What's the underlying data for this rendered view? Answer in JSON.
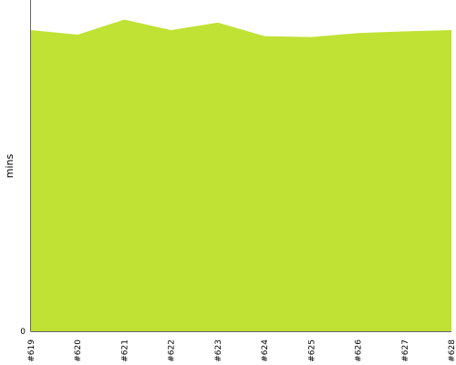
{
  "chart_data": {
    "type": "area",
    "categories": [
      "#619",
      "#620",
      "#621",
      "#622",
      "#623",
      "#624",
      "#625",
      "#626",
      "#627",
      "#628"
    ],
    "values": [
      1.0,
      0.985,
      1.035,
      1.0,
      1.025,
      0.98,
      0.977,
      0.99,
      0.996,
      1.0
    ],
    "ylabel": "mins",
    "xlabel": "",
    "y_ticks": [
      "0"
    ],
    "ylim": [
      0,
      1.1
    ],
    "grid": false,
    "legend": "none",
    "colors": {
      "area_fill": "#bfe234",
      "axis": "#666666"
    }
  }
}
